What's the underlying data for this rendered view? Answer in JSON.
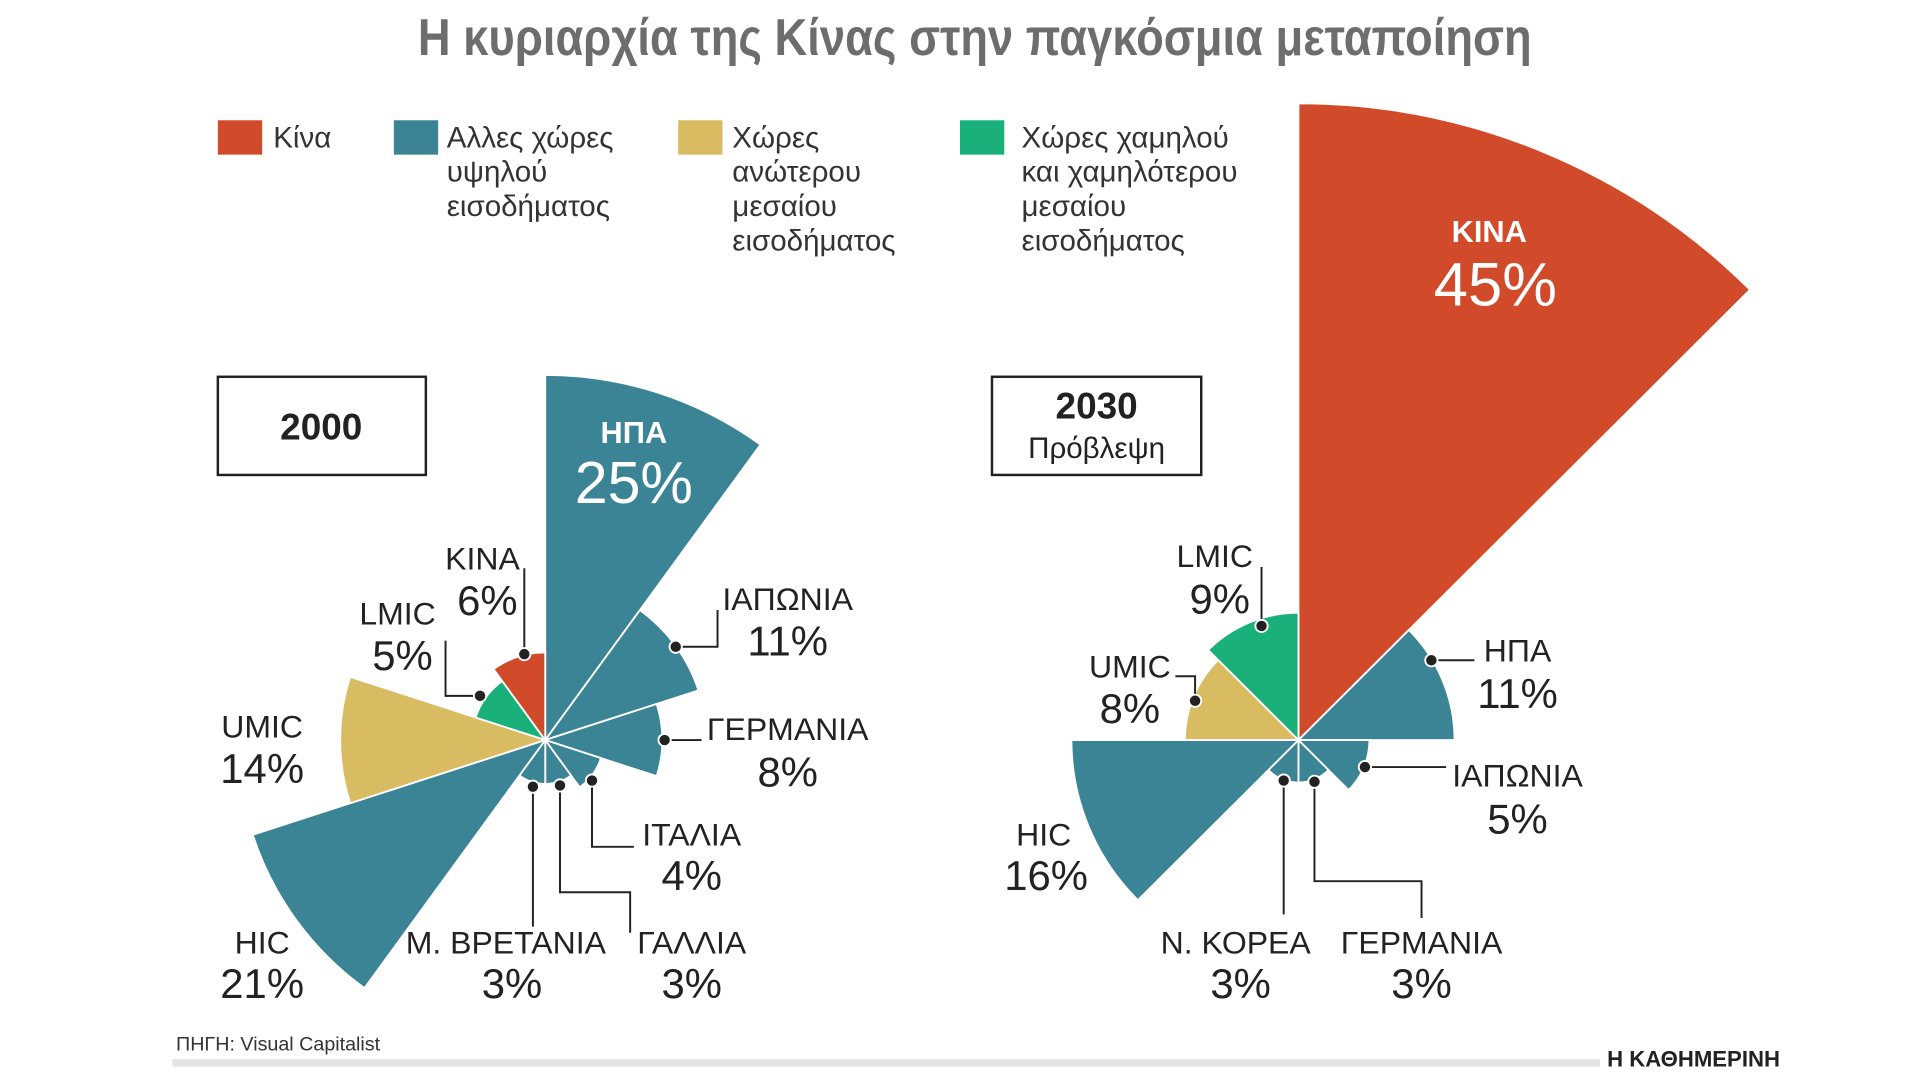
{
  "title": "Η κυριαρχία της Κίνας στην παγκόσμια μεταποίηση",
  "legend": [
    {
      "lines": [
        "Κίνα"
      ],
      "color": "#d14a2a"
    },
    {
      "lines": [
        "Αλλες χώρες",
        "υψηλού",
        "εισοδήματος"
      ],
      "color": "#3a8496"
    },
    {
      "lines": [
        "Χώρες",
        "ανώτερου",
        "μεσαίου",
        "εισοδήματος"
      ],
      "color": "#d9bb62"
    },
    {
      "lines": [
        "Χώρες χαμηλού",
        "και χαμηλότερου",
        "μεσαίου",
        "εισοδήματος"
      ],
      "color": "#1ab07a"
    }
  ],
  "chart_data": [
    {
      "type": "polar-area",
      "title": "2000",
      "subtitle": "",
      "unit": "%",
      "categories": [
        "ΗΠΑ",
        "ΙΑΠΩΝΙΑ",
        "ΓΕΡΜΑΝΙΑ",
        "ΙΤΑΛΙΑ",
        "ΓΑΛΛΙΑ",
        "Μ. ΒΡΕΤΑΝΙΑ",
        "HIC",
        "UMIC",
        "LMIC",
        "ΚΙΝΑ"
      ],
      "values": [
        25,
        11,
        8,
        4,
        3,
        3,
        21,
        14,
        5,
        6
      ],
      "labels": [
        "25%",
        "11%",
        "8%",
        "4%",
        "3%",
        "3%",
        "21%",
        "14%",
        "5%",
        "6%"
      ],
      "groups": [
        "high",
        "high",
        "high",
        "high",
        "high",
        "high",
        "high",
        "umic",
        "lmic",
        "china"
      ]
    },
    {
      "type": "polar-area",
      "title": "2030",
      "subtitle": "Πρόβλεψη",
      "unit": "%",
      "categories": [
        "ΚΙΝΑ",
        "ΗΠΑ",
        "ΙΑΠΩΝΙΑ",
        "ΓΕΡΜΑΝΙΑ",
        "Ν. ΚΟΡΕΑ",
        "HIC",
        "UMIC",
        "LMIC"
      ],
      "values": [
        45,
        11,
        5,
        3,
        3,
        16,
        8,
        9
      ],
      "labels": [
        "45%",
        "11%",
        "5%",
        "3%",
        "3%",
        "16%",
        "8%",
        "9%"
      ],
      "groups": [
        "china",
        "high",
        "high",
        "high",
        "high",
        "high",
        "umic",
        "lmic"
      ]
    }
  ],
  "colors": {
    "china": "#d14a2a",
    "high": "#3a8496",
    "umic": "#d9bb62",
    "lmic": "#1ab07a"
  },
  "source": "ΠΗΓΗ: Visual Capitalist",
  "logo": "Η ΚΑΘΗΜΕΡΙΝΗ"
}
